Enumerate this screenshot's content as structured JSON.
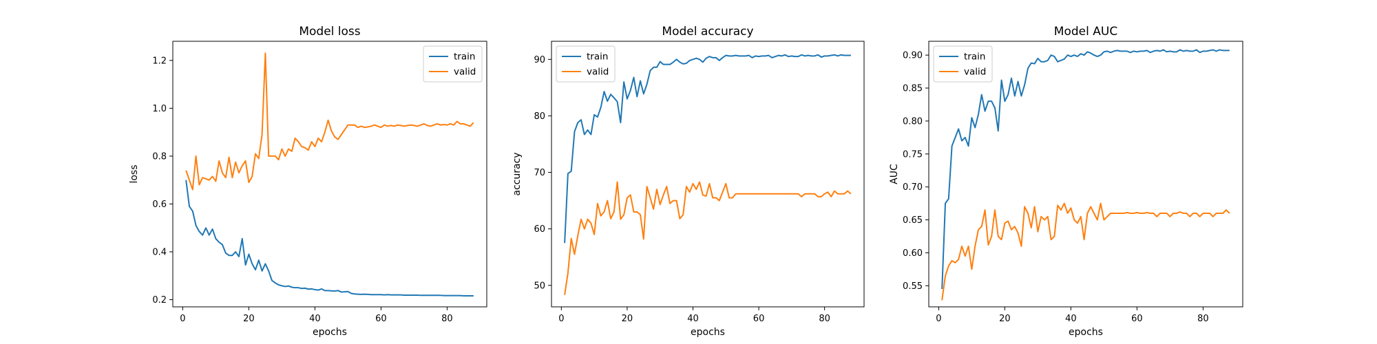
{
  "chart_data": [
    {
      "type": "line",
      "title": "Model loss",
      "xlabel": "epochs",
      "ylabel": "loss",
      "xlim": [
        -3,
        92
      ],
      "ylim": [
        0.17,
        1.28
      ],
      "xticks": [
        0,
        20,
        40,
        60,
        80
      ],
      "yticks": [
        0.2,
        0.4,
        0.6,
        0.8,
        1.0,
        1.2
      ],
      "ytick_labels": [
        "0.2",
        "0.4",
        "0.6",
        "0.8",
        "1.0",
        "1.2"
      ],
      "grid": false,
      "legend": "top-right",
      "series": [
        {
          "name": "train",
          "color": "#1f77b4",
          "values": [
            0.7,
            0.59,
            0.57,
            0.51,
            0.485,
            0.47,
            0.5,
            0.47,
            0.495,
            0.455,
            0.44,
            0.43,
            0.395,
            0.385,
            0.385,
            0.4,
            0.38,
            0.455,
            0.345,
            0.39,
            0.35,
            0.325,
            0.365,
            0.32,
            0.35,
            0.32,
            0.28,
            0.27,
            0.262,
            0.258,
            0.255,
            0.257,
            0.252,
            0.25,
            0.25,
            0.247,
            0.248,
            0.244,
            0.245,
            0.242,
            0.24,
            0.245,
            0.238,
            0.238,
            0.237,
            0.236,
            0.238,
            0.232,
            0.233,
            0.234,
            0.226,
            0.224,
            0.223,
            0.222,
            0.223,
            0.222,
            0.221,
            0.221,
            0.221,
            0.221,
            0.22,
            0.221,
            0.22,
            0.22,
            0.22,
            0.22,
            0.219,
            0.219,
            0.219,
            0.219,
            0.219,
            0.218,
            0.218,
            0.218,
            0.218,
            0.218,
            0.218,
            0.218,
            0.217,
            0.217,
            0.217,
            0.217,
            0.217,
            0.217,
            0.216,
            0.216,
            0.216,
            0.216
          ]
        },
        {
          "name": "valid",
          "color": "#ff7f0e",
          "values": [
            0.74,
            0.7,
            0.66,
            0.8,
            0.68,
            0.71,
            0.705,
            0.7,
            0.715,
            0.695,
            0.78,
            0.73,
            0.71,
            0.795,
            0.71,
            0.775,
            0.73,
            0.76,
            0.78,
            0.69,
            0.715,
            0.81,
            0.79,
            0.89,
            1.23,
            0.8,
            0.8,
            0.8,
            0.785,
            0.83,
            0.8,
            0.83,
            0.82,
            0.875,
            0.86,
            0.84,
            0.835,
            0.825,
            0.86,
            0.84,
            0.875,
            0.86,
            0.9,
            0.95,
            0.905,
            0.88,
            0.87,
            0.89,
            0.91,
            0.93,
            0.93,
            0.93,
            0.92,
            0.925,
            0.92,
            0.922,
            0.925,
            0.93,
            0.925,
            0.92,
            0.93,
            0.925,
            0.928,
            0.925,
            0.93,
            0.928,
            0.925,
            0.928,
            0.93,
            0.928,
            0.925,
            0.93,
            0.935,
            0.928,
            0.925,
            0.93,
            0.935,
            0.93,
            0.932,
            0.93,
            0.935,
            0.93,
            0.945,
            0.935,
            0.935,
            0.93,
            0.925,
            0.94
          ]
        }
      ]
    },
    {
      "type": "line",
      "title": "Model accuracy",
      "xlabel": "epochs",
      "ylabel": "accuracy",
      "xlim": [
        -3,
        92
      ],
      "ylim": [
        46.2,
        93.2
      ],
      "xticks": [
        0,
        20,
        40,
        60,
        80
      ],
      "yticks": [
        50,
        60,
        70,
        80,
        90
      ],
      "ytick_labels": [
        "50",
        "60",
        "70",
        "80",
        "90"
      ],
      "grid": false,
      "legend": "top-left",
      "series": [
        {
          "name": "train",
          "color": "#1f77b4",
          "values": [
            57.5,
            69.8,
            70.2,
            77.2,
            78.8,
            79.3,
            76.7,
            77.5,
            76.7,
            80.2,
            79.8,
            81.5,
            84.3,
            82.6,
            83.8,
            83.2,
            82.5,
            78.8,
            86.0,
            83.0,
            84.5,
            86.8,
            83.4,
            86.2,
            83.9,
            85.6,
            88.0,
            88.6,
            88.6,
            89.6,
            89.1,
            89.1,
            89.1,
            89.5,
            90.0,
            89.5,
            89.2,
            89.3,
            89.8,
            90.0,
            90.2,
            90.0,
            89.5,
            90.2,
            90.5,
            90.3,
            90.3,
            89.8,
            90.3,
            90.7,
            90.6,
            90.6,
            90.7,
            90.6,
            90.6,
            90.6,
            90.7,
            90.3,
            90.6,
            90.5,
            90.6,
            90.6,
            90.7,
            90.3,
            90.5,
            90.7,
            90.6,
            90.8,
            90.5,
            90.6,
            90.5,
            90.5,
            90.8,
            90.6,
            90.7,
            90.6,
            90.6,
            90.8,
            90.4,
            90.6,
            90.6,
            90.7,
            90.8,
            90.6,
            90.8,
            90.7,
            90.7,
            90.7
          ]
        },
        {
          "name": "valid",
          "color": "#ff7f0e",
          "values": [
            48.3,
            52.2,
            58.3,
            55.5,
            58.8,
            61.7,
            60.0,
            61.7,
            61.0,
            59.0,
            64.5,
            62.3,
            63.0,
            65.0,
            61.8,
            63.0,
            68.3,
            61.7,
            62.5,
            65.5,
            66.0,
            63.0,
            63.0,
            62.5,
            58.2,
            67.5,
            65.5,
            63.5,
            67.0,
            64.3,
            66.0,
            67.5,
            64.5,
            65.0,
            65.0,
            61.8,
            62.5,
            67.5,
            66.5,
            68.0,
            67.0,
            68.3,
            66.0,
            65.8,
            68.0,
            65.5,
            65.5,
            65.0,
            66.5,
            68.0,
            65.5,
            65.5,
            66.2,
            66.2,
            66.2,
            66.2,
            66.2,
            66.2,
            66.2,
            66.2,
            66.2,
            66.2,
            66.2,
            66.2,
            66.2,
            66.2,
            66.2,
            66.2,
            66.2,
            66.2,
            66.2,
            66.2,
            65.7,
            66.2,
            66.2,
            66.2,
            66.2,
            65.7,
            65.7,
            66.2,
            66.5,
            65.7,
            66.7,
            66.2,
            66.2,
            66.2,
            66.7,
            66.2
          ]
        }
      ]
    },
    {
      "type": "line",
      "title": "Model AUC",
      "xlabel": "epochs",
      "ylabel": "AUC",
      "xlim": [
        -3,
        92
      ],
      "ylim": [
        0.518,
        0.921
      ],
      "xticks": [
        0,
        20,
        40,
        60,
        80
      ],
      "yticks": [
        0.55,
        0.6,
        0.65,
        0.7,
        0.75,
        0.8,
        0.85,
        0.9
      ],
      "ytick_labels": [
        "0.55",
        "0.60",
        "0.65",
        "0.70",
        "0.75",
        "0.80",
        "0.85",
        "0.90"
      ],
      "grid": false,
      "legend": "top-left",
      "series": [
        {
          "name": "train",
          "color": "#1f77b4",
          "values": [
            0.545,
            0.675,
            0.682,
            0.762,
            0.775,
            0.788,
            0.77,
            0.775,
            0.762,
            0.805,
            0.79,
            0.81,
            0.84,
            0.815,
            0.83,
            0.83,
            0.82,
            0.785,
            0.862,
            0.83,
            0.84,
            0.865,
            0.838,
            0.86,
            0.838,
            0.855,
            0.88,
            0.888,
            0.887,
            0.895,
            0.89,
            0.89,
            0.892,
            0.9,
            0.898,
            0.89,
            0.892,
            0.894,
            0.9,
            0.898,
            0.9,
            0.898,
            0.902,
            0.9,
            0.905,
            0.903,
            0.9,
            0.898,
            0.9,
            0.905,
            0.906,
            0.904,
            0.906,
            0.907,
            0.906,
            0.906,
            0.906,
            0.904,
            0.906,
            0.905,
            0.906,
            0.906,
            0.907,
            0.904,
            0.906,
            0.907,
            0.906,
            0.908,
            0.905,
            0.906,
            0.905,
            0.905,
            0.908,
            0.906,
            0.907,
            0.906,
            0.906,
            0.908,
            0.904,
            0.906,
            0.906,
            0.907,
            0.908,
            0.906,
            0.908,
            0.907,
            0.907,
            0.907
          ]
        },
        {
          "name": "valid",
          "color": "#ff7f0e",
          "values": [
            0.528,
            0.565,
            0.58,
            0.588,
            0.585,
            0.59,
            0.61,
            0.595,
            0.61,
            0.575,
            0.61,
            0.635,
            0.64,
            0.665,
            0.612,
            0.625,
            0.665,
            0.625,
            0.62,
            0.645,
            0.648,
            0.635,
            0.64,
            0.63,
            0.61,
            0.67,
            0.66,
            0.638,
            0.67,
            0.632,
            0.655,
            0.65,
            0.655,
            0.62,
            0.625,
            0.672,
            0.665,
            0.675,
            0.66,
            0.668,
            0.65,
            0.645,
            0.655,
            0.62,
            0.66,
            0.67,
            0.66,
            0.65,
            0.675,
            0.65,
            0.655,
            0.66,
            0.66,
            0.66,
            0.66,
            0.66,
            0.661,
            0.66,
            0.66,
            0.661,
            0.66,
            0.66,
            0.661,
            0.66,
            0.66,
            0.655,
            0.66,
            0.66,
            0.66,
            0.655,
            0.66,
            0.66,
            0.662,
            0.66,
            0.66,
            0.655,
            0.66,
            0.66,
            0.655,
            0.66,
            0.66,
            0.66,
            0.655,
            0.66,
            0.66,
            0.66,
            0.665,
            0.66
          ]
        }
      ]
    }
  ]
}
